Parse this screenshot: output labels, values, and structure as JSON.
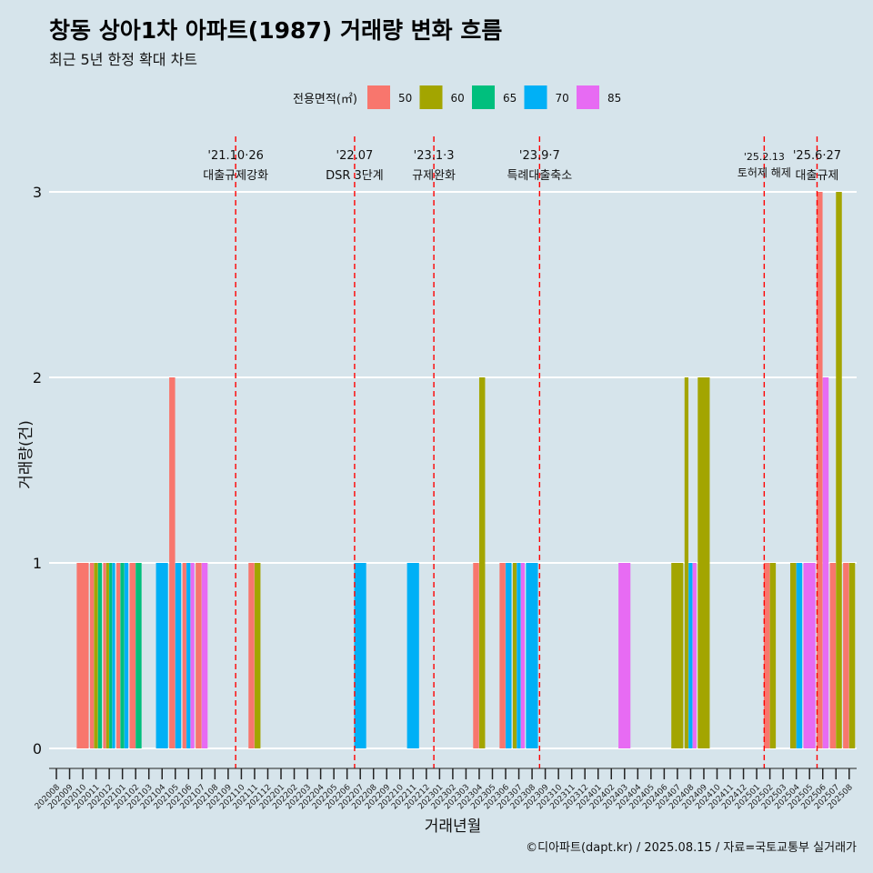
{
  "title": "창동 상아1차 아파트(1987) 거래량 변화 흐름",
  "subtitle": "최근 5년 한정 확대 차트",
  "caption": "©디아파트(dapt.kr) / 2025.08.15 / 자료=국토교통부 실거래가",
  "chart_data": {
    "type": "bar",
    "title": "창동 상아1차 아파트(1987) 거래량 변화 흐름",
    "xlabel": "거래년월",
    "ylabel": "거래량(건)",
    "ylim": [
      0,
      3
    ],
    "yticks": [
      0,
      1,
      2,
      3
    ],
    "grid": true,
    "legend_title": "전용면적(㎡)",
    "legend_position": "top",
    "categories": [
      "202008",
      "202009",
      "202010",
      "202011",
      "202012",
      "202101",
      "202102",
      "202103",
      "202104",
      "202105",
      "202106",
      "202107",
      "202108",
      "202109",
      "202110",
      "202111",
      "202112",
      "202201",
      "202202",
      "202203",
      "202204",
      "202205",
      "202206",
      "202207",
      "202208",
      "202209",
      "202210",
      "202211",
      "202212",
      "202301",
      "202302",
      "202303",
      "202304",
      "202305",
      "202306",
      "202307",
      "202308",
      "202309",
      "202310",
      "202311",
      "202312",
      "202401",
      "202402",
      "202403",
      "202404",
      "202405",
      "202406",
      "202407",
      "202408",
      "202409",
      "202410",
      "202411",
      "202412",
      "202501",
      "202502",
      "202503",
      "202504",
      "202505",
      "202506",
      "202507",
      "202508"
    ],
    "series": [
      {
        "name": "50",
        "color": "#F8766D",
        "points": [
          [
            "202010",
            1
          ],
          [
            "202011",
            1
          ],
          [
            "202012",
            1
          ],
          [
            "202101",
            1
          ],
          [
            "202102",
            1
          ],
          [
            "202105",
            2
          ],
          [
            "202106",
            1
          ],
          [
            "202107",
            1
          ],
          [
            "202111",
            1
          ],
          [
            "202304",
            1
          ],
          [
            "202306",
            1
          ],
          [
            "202502",
            1
          ],
          [
            "202506",
            3
          ],
          [
            "202507",
            1
          ],
          [
            "202508",
            1
          ]
        ]
      },
      {
        "name": "60",
        "color": "#A3A500",
        "points": [
          [
            "202011",
            1
          ],
          [
            "202012",
            1
          ],
          [
            "202111",
            1
          ],
          [
            "202304",
            2
          ],
          [
            "202307",
            1
          ],
          [
            "202407",
            1
          ],
          [
            "202408",
            2
          ],
          [
            "202409",
            2
          ],
          [
            "202502",
            1
          ],
          [
            "202504",
            1
          ],
          [
            "202507",
            3
          ],
          [
            "202508",
            1
          ]
        ]
      },
      {
        "name": "65",
        "color": "#00BF7D",
        "points": [
          [
            "202011",
            1
          ],
          [
            "202012",
            1
          ],
          [
            "202101",
            1
          ],
          [
            "202102",
            1
          ]
        ]
      },
      {
        "name": "70",
        "color": "#00B0F6",
        "points": [
          [
            "202012",
            1
          ],
          [
            "202101",
            1
          ],
          [
            "202104",
            1
          ],
          [
            "202105",
            1
          ],
          [
            "202106",
            1
          ],
          [
            "202207",
            1
          ],
          [
            "202211",
            1
          ],
          [
            "202306",
            1
          ],
          [
            "202307",
            1
          ],
          [
            "202308",
            1
          ],
          [
            "202408",
            1
          ],
          [
            "202504",
            1
          ]
        ]
      },
      {
        "name": "85",
        "color": "#E76BF3",
        "points": [
          [
            "202106",
            1
          ],
          [
            "202107",
            1
          ],
          [
            "202307",
            1
          ],
          [
            "202403",
            1
          ],
          [
            "202408",
            1
          ],
          [
            "202505",
            1
          ],
          [
            "202506",
            2
          ]
        ]
      }
    ],
    "events": [
      {
        "at": "202110",
        "date": "'21.10·26",
        "label": "대출규제강화"
      },
      {
        "at": "202207",
        "date": "'22.07",
        "label": "DSR 3단계"
      },
      {
        "at": "202301",
        "date": "'23.1·3",
        "label": "규제완화"
      },
      {
        "at": "202309",
        "date": "'23.9·7",
        "label": "특례대출축소"
      },
      {
        "at": "202502",
        "date": "'25.2.13",
        "label": "토허제 해제"
      },
      {
        "at": "202506",
        "date": "'25.6·27",
        "label": "대출규제"
      }
    ]
  }
}
